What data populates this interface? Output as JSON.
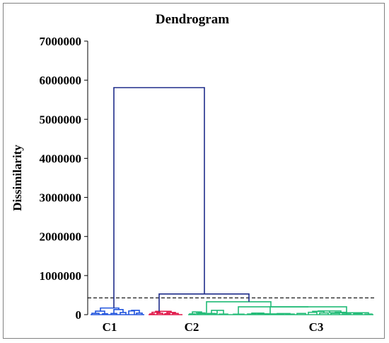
{
  "chart_data": {
    "type": "dendrogram",
    "title": "Dendrogram",
    "ylabel": "Dissimilarity",
    "xlabel": "",
    "ylim": [
      0,
      7000000
    ],
    "yticks": [
      0,
      1000000,
      2000000,
      3000000,
      4000000,
      5000000,
      6000000,
      7000000
    ],
    "ytick_labels": [
      "0",
      "1000000",
      "2000000",
      "3000000",
      "4000000",
      "5000000",
      "6000000",
      "7000000"
    ],
    "truncation_line": 430000,
    "clusters": [
      {
        "label": "C1",
        "color": "#2255dd"
      },
      {
        "label": "C2",
        "color": "#e0184a"
      },
      {
        "label": "C3",
        "color": "#22bb77"
      }
    ],
    "main_link_color": "#1f2d8a",
    "top_merges": [
      {
        "merge": [
          "C2",
          "C3"
        ],
        "height": 530000
      },
      {
        "merge": [
          "C1",
          "C2+C3"
        ],
        "height": 5810000
      }
    ]
  }
}
